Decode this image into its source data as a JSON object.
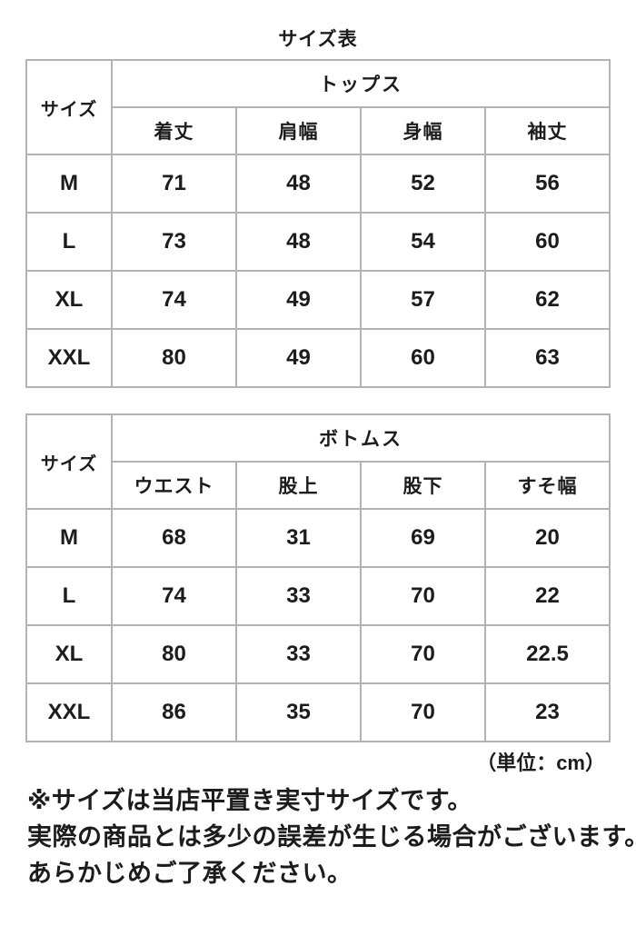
{
  "page": {
    "title": "サイズ表",
    "unit_note": "（単位：cm）",
    "footnotes": [
      "※サイズは当店平置き実寸サイズです。",
      "実際の商品とは多少の誤差が生じる場合がございます。",
      "あらかじめご了承ください。"
    ]
  },
  "colors": {
    "text": "#1c1c1c",
    "border": "#b3b3b3",
    "background": "#ffffff"
  },
  "chart_data": [
    {
      "type": "table",
      "title": "トップス",
      "size_column_header": "サイズ",
      "columns": [
        "着丈",
        "肩幅",
        "身幅",
        "袖丈"
      ],
      "rows": [
        {
          "size": "M",
          "values": [
            "71",
            "48",
            "52",
            "56"
          ]
        },
        {
          "size": "L",
          "values": [
            "73",
            "48",
            "54",
            "60"
          ]
        },
        {
          "size": "XL",
          "values": [
            "74",
            "49",
            "57",
            "62"
          ]
        },
        {
          "size": "XXL",
          "values": [
            "80",
            "49",
            "60",
            "63"
          ]
        }
      ],
      "unit": "cm"
    },
    {
      "type": "table",
      "title": "ボトムス",
      "size_column_header": "サイズ",
      "columns": [
        "ウエスト",
        "股上",
        "股下",
        "すそ幅"
      ],
      "rows": [
        {
          "size": "M",
          "values": [
            "68",
            "31",
            "69",
            "20"
          ]
        },
        {
          "size": "L",
          "values": [
            "74",
            "33",
            "70",
            "22"
          ]
        },
        {
          "size": "XL",
          "values": [
            "80",
            "33",
            "70",
            "22.5"
          ]
        },
        {
          "size": "XXL",
          "values": [
            "86",
            "35",
            "70",
            "23"
          ]
        }
      ],
      "unit": "cm"
    }
  ]
}
